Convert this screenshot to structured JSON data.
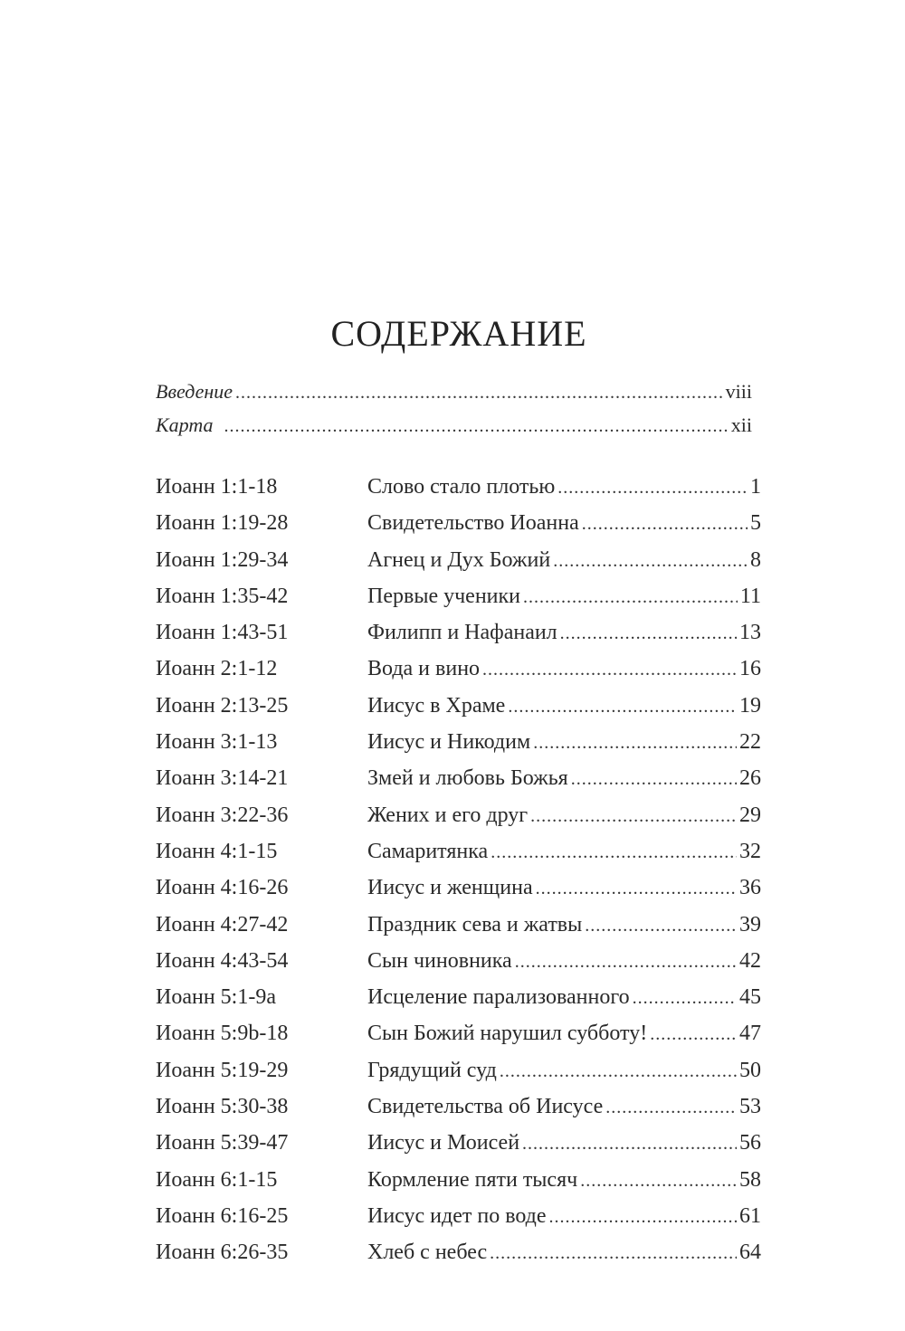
{
  "title": "СОДЕРЖАНИЕ",
  "intro": [
    {
      "label": "Введение",
      "page": "viii"
    },
    {
      "label": "Карта",
      "page": "xii"
    }
  ],
  "entries": [
    {
      "ref": "Иоанн 1:1-18",
      "title": "Слово стало плотью",
      "page": "1"
    },
    {
      "ref": "Иоанн 1:19-28",
      "title": "Свидетельство Иоанна",
      "page": "5"
    },
    {
      "ref": "Иоанн 1:29-34",
      "title": "Агнец и Дух Божий",
      "page": "8"
    },
    {
      "ref": "Иоанн 1:35-42",
      "title": "Первые ученики",
      "page": "11"
    },
    {
      "ref": "Иоанн 1:43-51",
      "title": "Филипп и Нафанаил",
      "page": "13"
    },
    {
      "ref": "Иоанн 2:1-12",
      "title": "Вода и вино",
      "page": "16"
    },
    {
      "ref": "Иоанн 2:13-25",
      "title": "Иисус в Храме",
      "page": "19"
    },
    {
      "ref": "Иоанн 3:1-13",
      "title": "Иисус и Никодим",
      "page": "22"
    },
    {
      "ref": "Иоанн 3:14-21",
      "title": "Змей и любовь Божья",
      "page": "26"
    },
    {
      "ref": "Иоанн 3:22-36",
      "title": "Жених и его друг",
      "page": "29"
    },
    {
      "ref": "Иоанн 4:1-15",
      "title": "Самаритянка",
      "page": "32"
    },
    {
      "ref": "Иоанн 4:16-26",
      "title": "Иисус и женщина",
      "page": "36"
    },
    {
      "ref": "Иоанн 4:27-42",
      "title": "Праздник сева и жатвы",
      "page": "39"
    },
    {
      "ref": "Иоанн 4:43-54",
      "title": "Сын чиновника",
      "page": "42"
    },
    {
      "ref": "Иоанн 5:1-9a",
      "title": "Исцеление парализованного",
      "page": "45"
    },
    {
      "ref": "Иоанн 5:9b-18",
      "title": "Сын Божий нарушил субботу!",
      "page": "47"
    },
    {
      "ref": "Иоанн 5:19-29",
      "title": "Грядущий суд",
      "page": "50"
    },
    {
      "ref": "Иоанн 5:30-38",
      "title": "Свидетельства об Иисусе",
      "page": "53"
    },
    {
      "ref": "Иоанн 5:39-47",
      "title": "Иисус и Моисей",
      "page": "56"
    },
    {
      "ref": "Иоанн 6:1-15",
      "title": "Кормление пяти тысяч",
      "page": "58"
    },
    {
      "ref": "Иоанн 6:16-25",
      "title": "Иисус идет по воде",
      "page": "61"
    },
    {
      "ref": "Иоанн 6:26-35",
      "title": "Хлеб с небес",
      "page": "64"
    }
  ]
}
